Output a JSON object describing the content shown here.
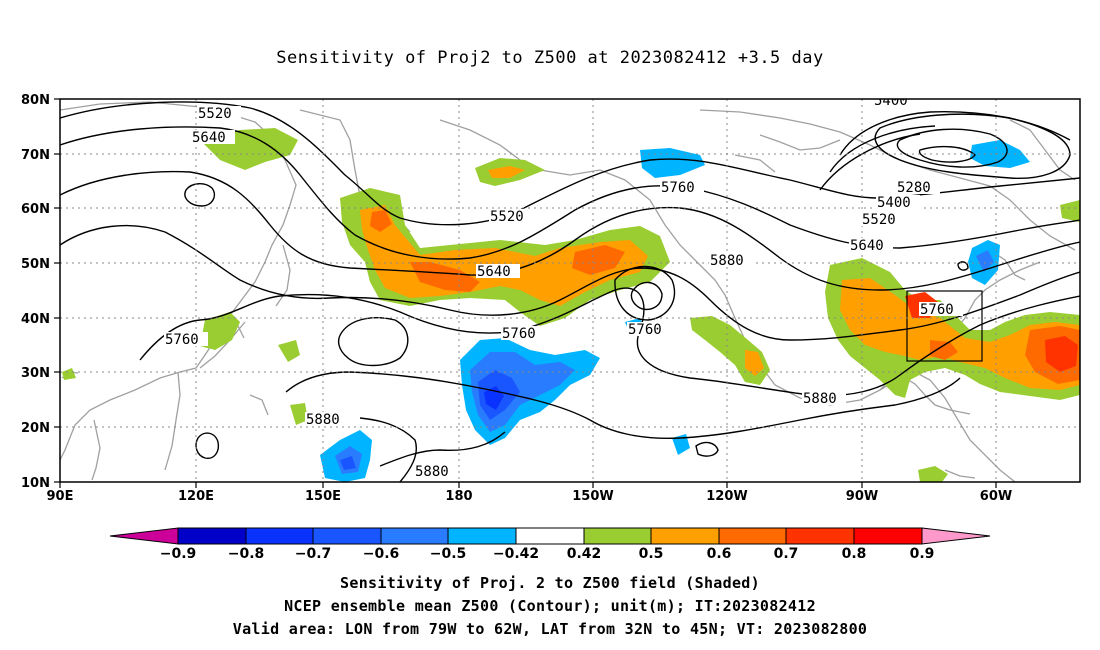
{
  "title": "Sensitivity of Proj2 to Z500 at 2023082412 +3.5 day",
  "lat_labels": [
    "80N",
    "70N",
    "60N",
    "50N",
    "40N",
    "30N",
    "20N",
    "10N"
  ],
  "lon_labels": [
    "90E",
    "120E",
    "150E",
    "180",
    "150W",
    "120W",
    "90W",
    "60W"
  ],
  "contour_labels": [
    "5520",
    "5640",
    "5400",
    "5760",
    "5280",
    "5400",
    "5520",
    "5640",
    "5520",
    "5640",
    "5880",
    "5760",
    "5760",
    "5760",
    "5880",
    "5880",
    "5880",
    "5760"
  ],
  "colorbar": {
    "labels": [
      "-0.9",
      "-0.8",
      "-0.7",
      "-0.6",
      "-0.5",
      "-0.42",
      "0.42",
      "0.5",
      "0.6",
      "0.7",
      "0.8",
      "0.9"
    ],
    "colors": [
      "#cc0099",
      "#0000c8",
      "#0a32ff",
      "#1a56ff",
      "#2a7cff",
      "#00b4ff",
      "#ffffff",
      "#9acd32",
      "#ff9f00",
      "#ff6a00",
      "#ff3300",
      "#ff0000",
      "#ff99cc"
    ]
  },
  "footer": [
    "Sensitivity of Proj. 2 to Z500 field (Shaded)",
    "NCEP ensemble mean Z500 (Contour); unit(m); IT:2023082412",
    "Valid area: LON from 79W to 62W, LAT from 32N to 45N; VT: 2023082800"
  ]
}
